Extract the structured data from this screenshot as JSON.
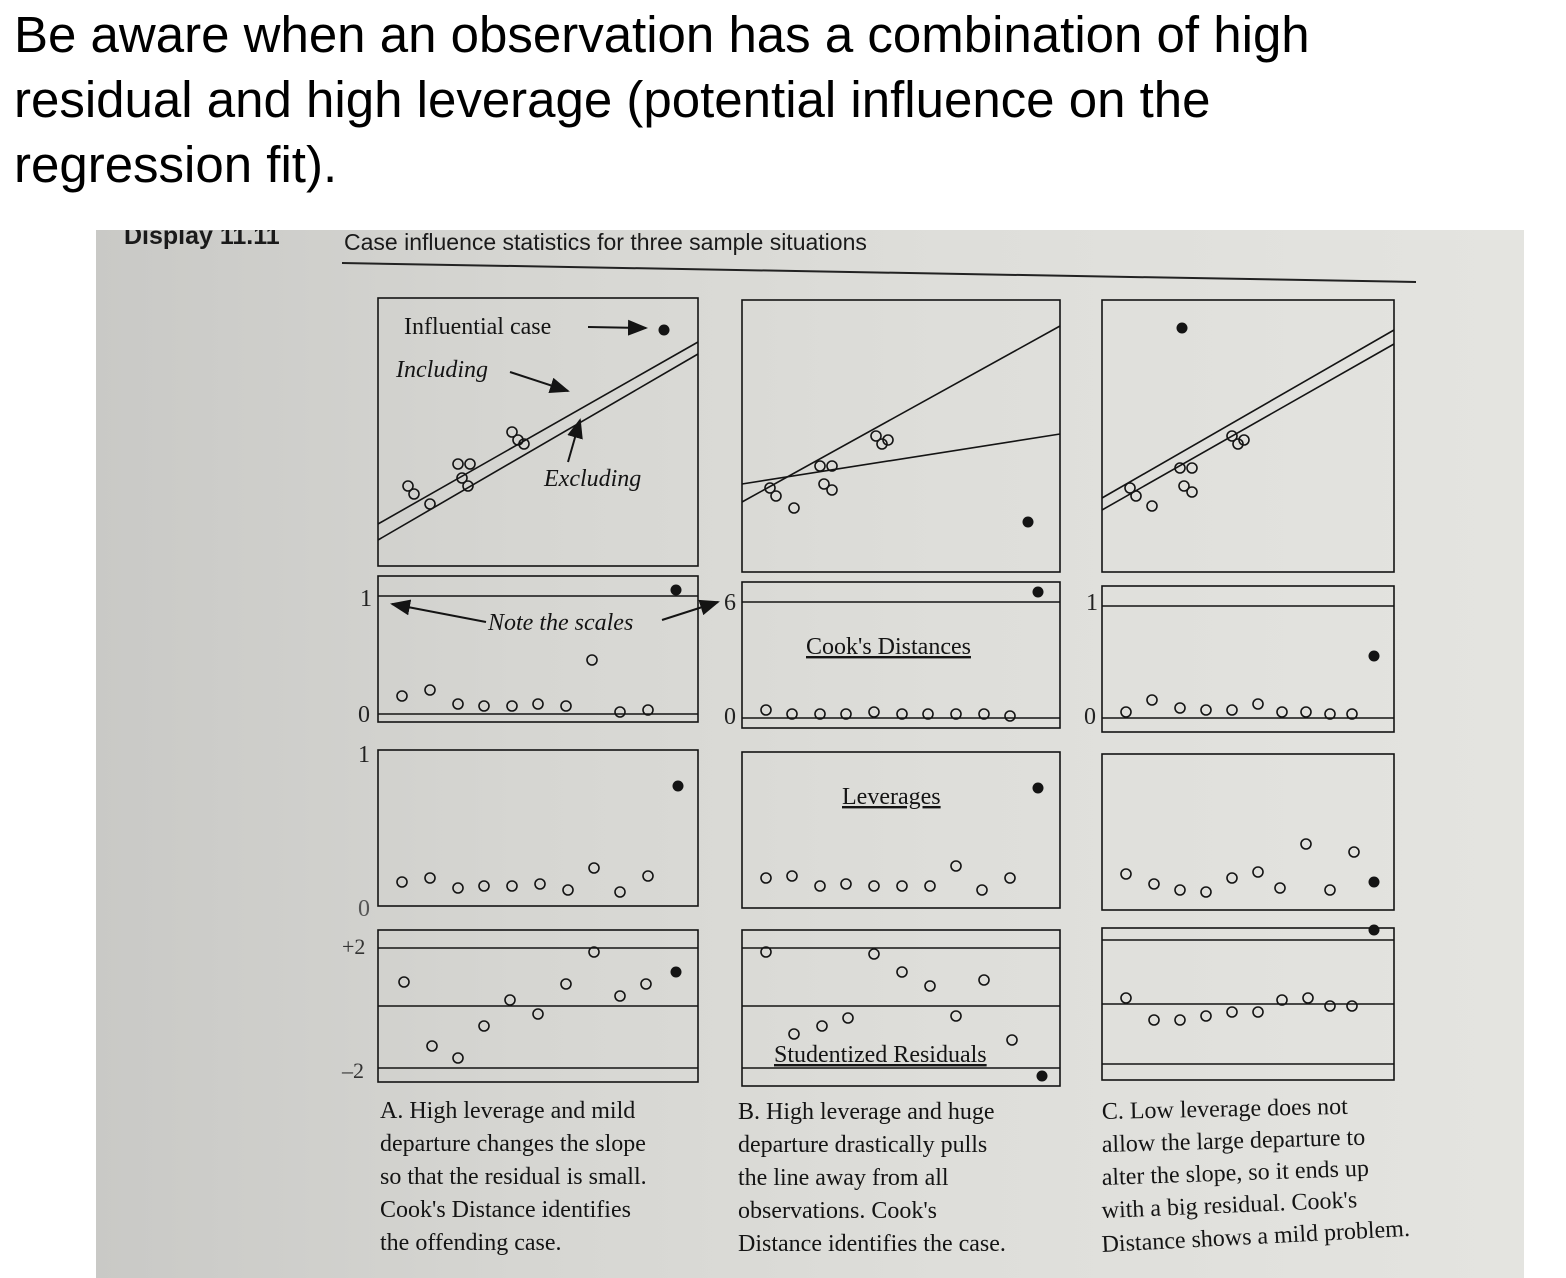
{
  "slide": {
    "title_lines": [
      "Be aware when an observation has a combination of high",
      "residual and high leverage (potential influence on the",
      "regression fit)."
    ]
  },
  "display": {
    "label": "Display 11.11",
    "title": "Case influence statistics for three sample situations",
    "annotations": {
      "influential_case": "Influential case",
      "including": "Including",
      "excluding": "Excluding",
      "note_scales": "Note the scales"
    },
    "row_labels": {
      "cooks": "Cook's Distances",
      "leverages": "Leverages",
      "studentized": "Studentized Residuals"
    },
    "axis_ticks": {
      "cooks_a_top": "1",
      "cooks_a_bottom": "0",
      "cooks_b_top": "6",
      "cooks_b_bottom": "0",
      "cooks_c_top": "1",
      "cooks_c_bottom": "0",
      "lev_top": "1",
      "lev_bottom": "0",
      "res_top": "+2",
      "res_bottom": "–2"
    },
    "captions": {
      "a": [
        "A. High leverage and mild",
        "departure changes the slope",
        "so that the residual is small.",
        "Cook's Distance identifies",
        "the offending case."
      ],
      "b": [
        "B. High leverage and huge",
        "departure drastically pulls",
        "the line away from all",
        "observations. Cook's",
        "Distance identifies the case."
      ],
      "c": [
        "C. Low leverage does not",
        "allow the large departure to",
        "alter the slope, so it ends up",
        "with a big residual. Cook's",
        "Distance shows a mild problem."
      ]
    },
    "colors": {
      "ink": "#141414",
      "paper": "#d9d9d5"
    }
  }
}
